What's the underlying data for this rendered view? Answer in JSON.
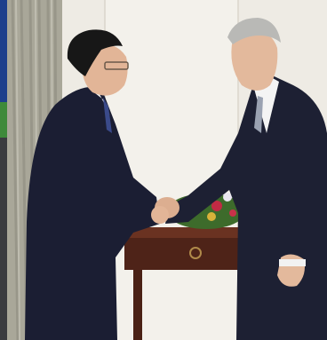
{
  "scene": {
    "kind": "photograph",
    "subject": "handshake",
    "colors": {
      "wall": "#ece9e1",
      "curtain": "#a8a69a",
      "suit": "#1b1f33",
      "table": "#5a2a1c",
      "flowers": "#c8324a"
    }
  }
}
